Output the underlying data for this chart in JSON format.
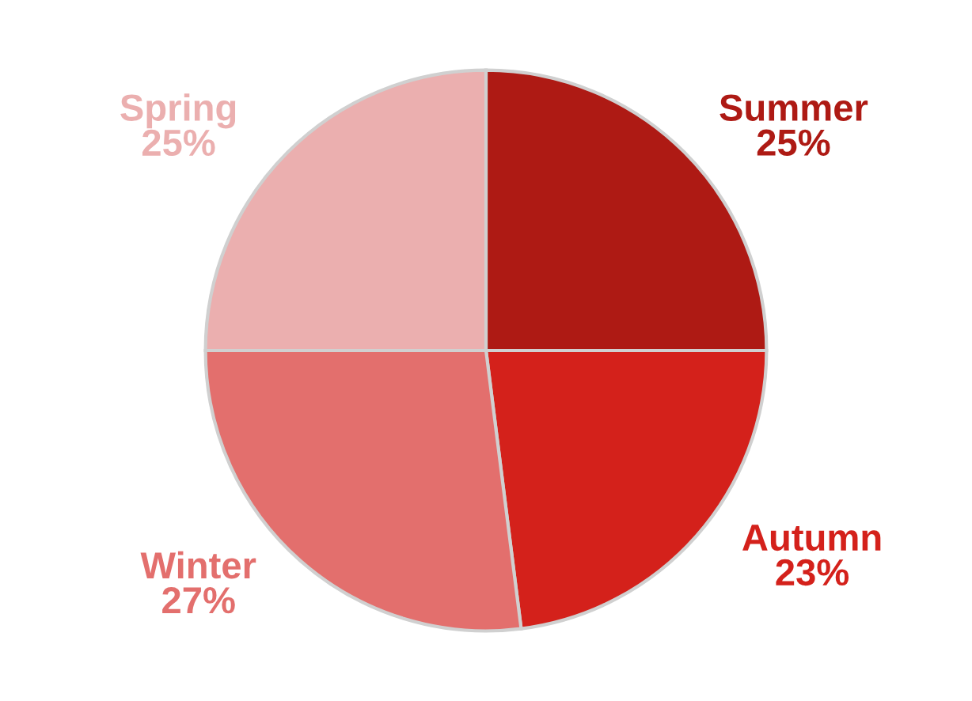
{
  "chart_data": {
    "type": "pie",
    "categories": [
      "Summer",
      "Autumn",
      "Winter",
      "Spring"
    ],
    "values": [
      25,
      23,
      27,
      25
    ],
    "value_labels": [
      "25%",
      "23%",
      "27%",
      "25%"
    ],
    "colors": [
      "#ae1a14",
      "#d4211b",
      "#e36f6d",
      "#ebafaf"
    ],
    "legend": false
  }
}
